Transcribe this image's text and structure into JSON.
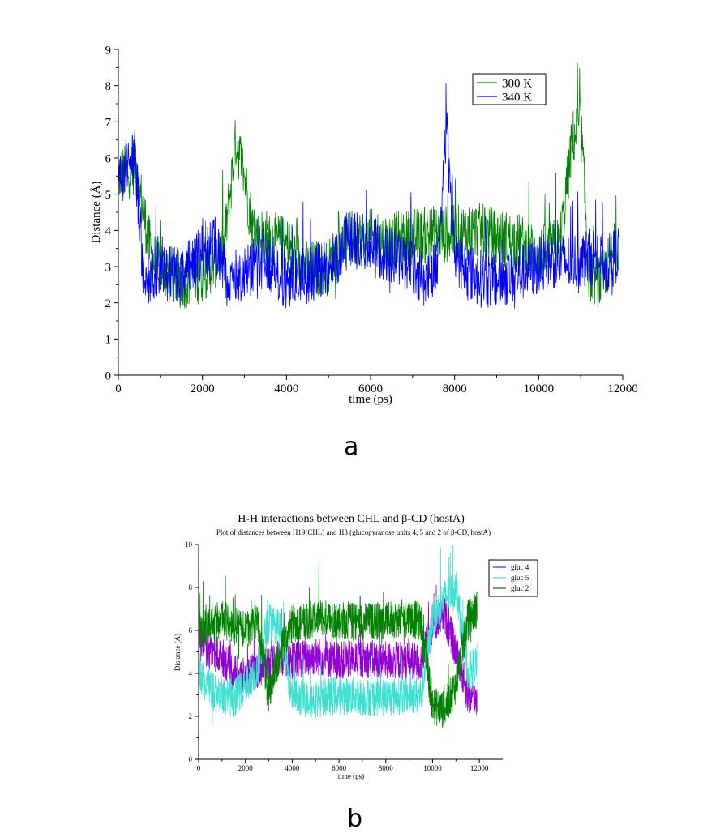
{
  "chart_data": [
    {
      "type": "line",
      "panel_label": "a",
      "title": "",
      "xlabel": "time (ps)",
      "ylabel": "Distance (Å)",
      "xlim": [
        0,
        12000
      ],
      "ylim": [
        0,
        9
      ],
      "xticks": [
        0,
        2000,
        4000,
        6000,
        8000,
        10000,
        12000
      ],
      "yticks": [
        0,
        1,
        2,
        3,
        4,
        5,
        6,
        7,
        8,
        9
      ],
      "legend": {
        "position": "top-right"
      },
      "series": [
        {
          "name": "300 K",
          "color": "#008000",
          "x": [
            0,
            200,
            400,
            600,
            800,
            1000,
            1500,
            2000,
            2500,
            2800,
            3000,
            3200,
            3500,
            4000,
            4500,
            5000,
            5500,
            6000,
            6500,
            7000,
            7500,
            8000,
            8500,
            9000,
            9500,
            10000,
            10500,
            10800,
            11000,
            11200,
            11500,
            11900
          ],
          "y": [
            5.5,
            5.6,
            5.8,
            4.5,
            3.2,
            3.0,
            2.6,
            2.8,
            3.4,
            6.5,
            5.5,
            4.0,
            3.8,
            3.6,
            2.9,
            3.0,
            3.8,
            3.8,
            3.7,
            3.8,
            3.9,
            3.9,
            4.0,
            3.8,
            3.7,
            3.3,
            3.6,
            6.5,
            7.0,
            2.8,
            2.6,
            3.7
          ]
        },
        {
          "name": "340 K",
          "color": "#0000ff",
          "x": [
            0,
            200,
            400,
            600,
            800,
            1000,
            1200,
            1500,
            2000,
            2300,
            2600,
            3000,
            3500,
            4000,
            4300,
            4600,
            5000,
            5500,
            6000,
            6500,
            7000,
            7300,
            7600,
            7800,
            8000,
            8500,
            9000,
            9500,
            10000,
            10300,
            10700,
            11000,
            11300,
            11600,
            11900
          ],
          "y": [
            5.5,
            5.7,
            6.0,
            2.8,
            2.7,
            3.1,
            2.8,
            2.7,
            3.4,
            3.6,
            2.6,
            2.9,
            3.2,
            2.6,
            2.7,
            2.8,
            3.0,
            3.8,
            3.6,
            3.3,
            3.0,
            2.6,
            3.2,
            6.8,
            3.3,
            2.7,
            2.6,
            2.8,
            3.0,
            3.2,
            3.1,
            3.2,
            3.3,
            3.0,
            3.4
          ]
        }
      ]
    },
    {
      "type": "line",
      "panel_label": "b",
      "title": "H-H interactions between CHL and β-CD (hostA)",
      "subtitle": "Plot of distances between H19(CHL) and H3 (glucopyranose units 4, 5 and 2 of β-CD, hostA)",
      "xlabel": "time (ps)",
      "ylabel": "Distance (Å)",
      "xlim": [
        0,
        13000
      ],
      "ylim": [
        0,
        10
      ],
      "xticks": [
        0,
        2000,
        4000,
        6000,
        8000,
        10000,
        12000
      ],
      "yticks": [
        0,
        2,
        4,
        6,
        8,
        10
      ],
      "legend": {
        "position": "top-right"
      },
      "series": [
        {
          "name": "gluc 4",
          "color": "#9400d3",
          "x": [
            0,
            500,
            1000,
            1500,
            2000,
            2500,
            3000,
            3500,
            4000,
            4500,
            5000,
            6000,
            7000,
            8000,
            9000,
            9500,
            10000,
            10500,
            11000,
            11500,
            11900
          ],
          "y": [
            5.5,
            5.0,
            4.8,
            4.0,
            3.8,
            4.2,
            4.5,
            4.8,
            4.6,
            4.7,
            4.8,
            4.6,
            4.7,
            4.6,
            4.6,
            4.5,
            6.2,
            6.8,
            5.0,
            3.0,
            2.8
          ]
        },
        {
          "name": "gluc 5",
          "color": "#40e0d0",
          "x": [
            0,
            500,
            1000,
            1500,
            2000,
            2500,
            3000,
            3500,
            4000,
            4500,
            5000,
            6000,
            7000,
            8000,
            9000,
            9500,
            10000,
            10500,
            11000,
            11500,
            11900
          ],
          "y": [
            4.0,
            3.2,
            3.0,
            2.8,
            3.5,
            4.2,
            6.5,
            6.0,
            3.0,
            2.8,
            2.8,
            3.0,
            2.9,
            2.9,
            3.0,
            3.0,
            6.5,
            7.5,
            8.0,
            4.0,
            4.5
          ]
        },
        {
          "name": "gluc 2",
          "color": "#008000",
          "x": [
            0,
            500,
            1000,
            1500,
            2000,
            2500,
            3000,
            3500,
            4000,
            4500,
            5000,
            6000,
            7000,
            8000,
            9000,
            9500,
            10000,
            10500,
            11000,
            11500,
            11900
          ],
          "y": [
            6.0,
            6.3,
            6.5,
            6.2,
            6.0,
            6.5,
            3.0,
            5.0,
            6.3,
            6.4,
            6.6,
            6.5,
            6.4,
            6.5,
            6.6,
            6.4,
            2.5,
            2.3,
            3.5,
            6.5,
            7.0
          ]
        }
      ]
    }
  ]
}
